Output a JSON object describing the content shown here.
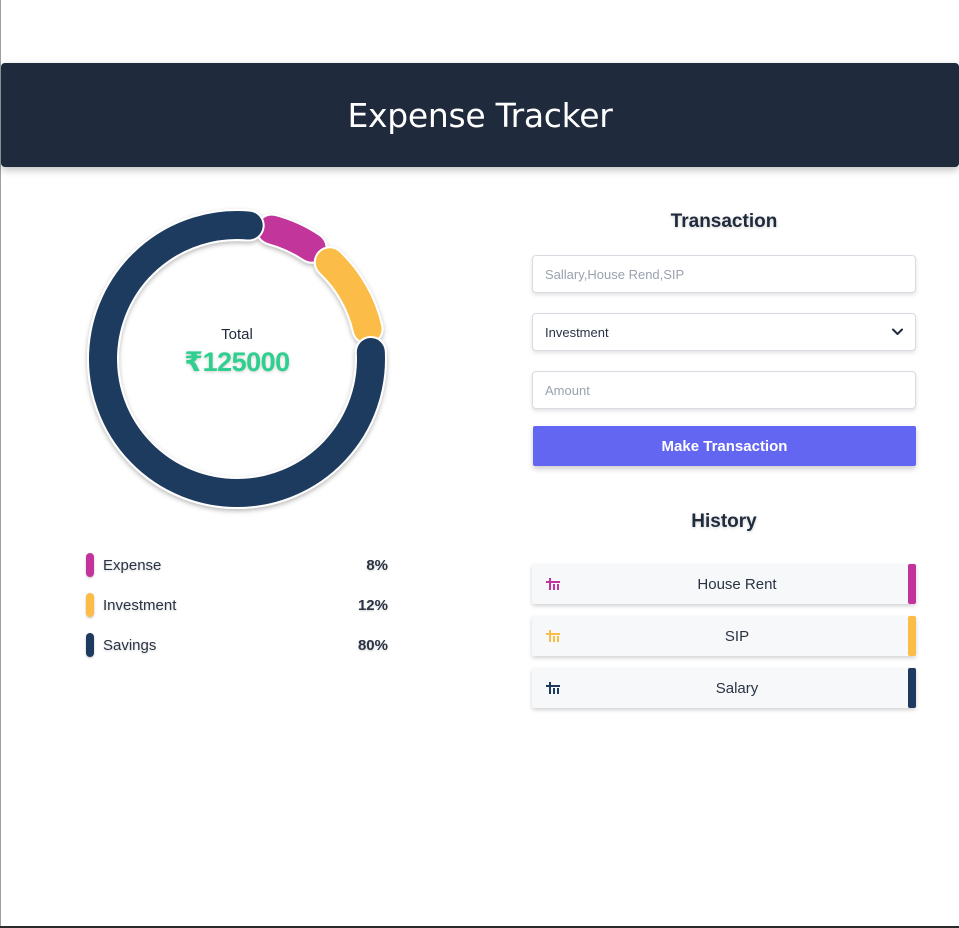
{
  "app": {
    "title": "Expense Tracker"
  },
  "colors": {
    "header_bg": "#1f2a3c",
    "expense": "#c2349b",
    "investment": "#fbbd47",
    "savings": "#1f3a5f",
    "total": "#2fcf8f",
    "button": "#6366f1"
  },
  "summary": {
    "total_label": "Total",
    "total_value": "₹125000"
  },
  "chart_data": {
    "type": "pie",
    "variant": "donut",
    "title": "",
    "categories": [
      "Expense",
      "Investment",
      "Savings"
    ],
    "values": [
      8,
      12,
      80
    ],
    "colors": [
      "#c2349b",
      "#fbbd47",
      "#1f3a5f"
    ],
    "start_angle_deg": 10,
    "unit": "%"
  },
  "legend": {
    "items": [
      {
        "name": "Expense",
        "percent": "8%",
        "color": "#c2349b"
      },
      {
        "name": "Investment",
        "percent": "12%",
        "color": "#fbbd47"
      },
      {
        "name": "Savings",
        "percent": "80%",
        "color": "#1f3a5f"
      }
    ]
  },
  "transaction": {
    "title": "Transaction",
    "description_placeholder": "Sallary,House Rend,SIP",
    "type_selected": "Investment",
    "amount_placeholder": "Amount",
    "submit_label": "Make Transaction"
  },
  "history": {
    "title": "History",
    "items": [
      {
        "label": "House Rent",
        "color": "#c2349b",
        "icon": "bank-icon"
      },
      {
        "label": "SIP",
        "color": "#fbbd47",
        "icon": "bank-icon"
      },
      {
        "label": "Salary",
        "color": "#1f3a5f",
        "icon": "bank-icon"
      }
    ]
  }
}
